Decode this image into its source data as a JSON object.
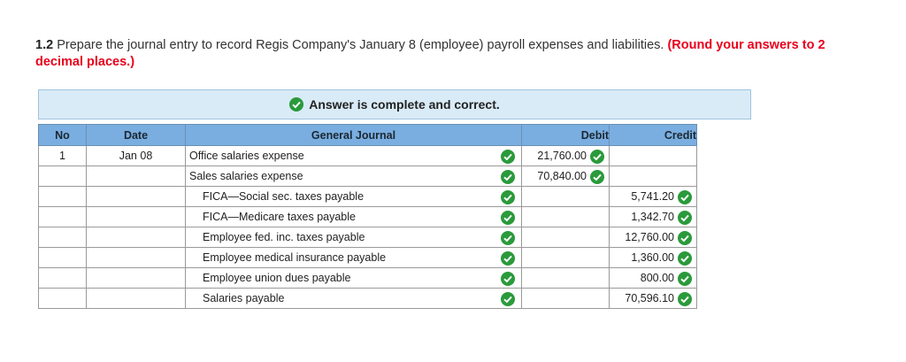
{
  "question": {
    "number": "1.2",
    "text": "Prepare the journal entry to record Regis Company's January 8 (employee) payroll expenses and liabilities.",
    "note": "(Round your answers to 2 decimal places.)"
  },
  "banner": {
    "text": "Answer is complete and correct.",
    "icon": "check-circle-icon"
  },
  "table": {
    "headers": {
      "no": "No",
      "date": "Date",
      "journal": "General Journal",
      "debit": "Debit",
      "credit": "Credit"
    },
    "rows": [
      {
        "no": "1",
        "date": "Jan 08",
        "account": "Office salaries expense",
        "debit": "21,760.00",
        "credit": ""
      },
      {
        "no": "",
        "date": "",
        "account": "Sales salaries expense",
        "debit": "70,840.00",
        "credit": ""
      },
      {
        "no": "",
        "date": "",
        "account": "FICA—Social sec. taxes payable",
        "debit": "",
        "credit": "5,741.20"
      },
      {
        "no": "",
        "date": "",
        "account": "FICA—Medicare taxes payable",
        "debit": "",
        "credit": "1,342.70"
      },
      {
        "no": "",
        "date": "",
        "account": "Employee fed. inc. taxes payable",
        "debit": "",
        "credit": "12,760.00"
      },
      {
        "no": "",
        "date": "",
        "account": "Employee medical insurance payable",
        "debit": "",
        "credit": "1,360.00"
      },
      {
        "no": "",
        "date": "",
        "account": "Employee union dues payable",
        "debit": "",
        "credit": "800.00"
      },
      {
        "no": "",
        "date": "",
        "account": "Salaries payable",
        "debit": "",
        "credit": "70,596.10"
      }
    ]
  },
  "colors": {
    "check": "#2a9a3b",
    "note": "#e8001c",
    "header": "#7aaee0",
    "banner": "#d9ebf7"
  }
}
